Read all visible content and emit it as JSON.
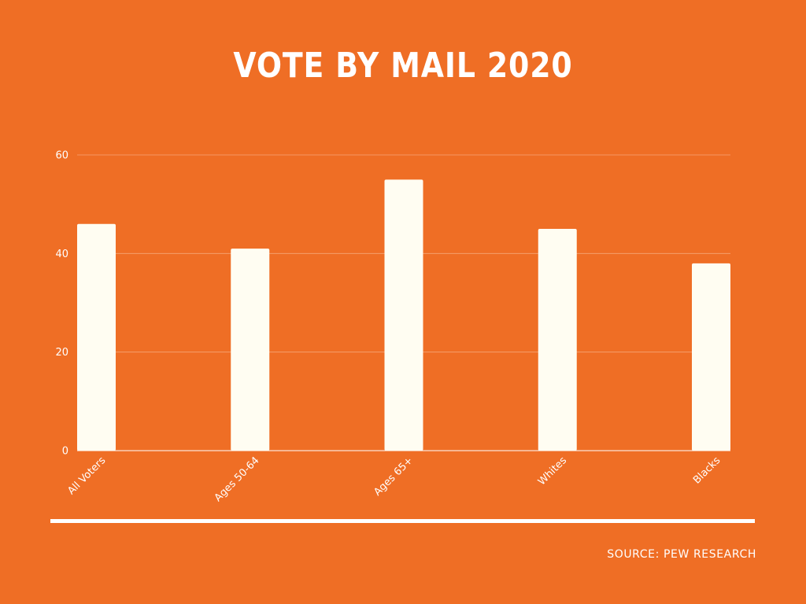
{
  "colors": {
    "background": "#ef6e25",
    "bar": "#fffdf2",
    "text": "#ffffff",
    "gridline": "#f6a577"
  },
  "title": "VOTE BY MAIL 2020",
  "source": "SOURCE: PEW RESEARCH",
  "chart_data": {
    "type": "bar",
    "title": "VOTE BY MAIL 2020",
    "xlabel": "",
    "ylabel": "",
    "categories": [
      "All Voters",
      "Ages 50-64",
      "Ages 65+",
      "Whites",
      "Blacks"
    ],
    "values": [
      46,
      41,
      55,
      45,
      38
    ],
    "ylim": [
      0,
      60
    ],
    "yticks": [
      0,
      20,
      40,
      60
    ],
    "grid": true,
    "legend": "none"
  }
}
